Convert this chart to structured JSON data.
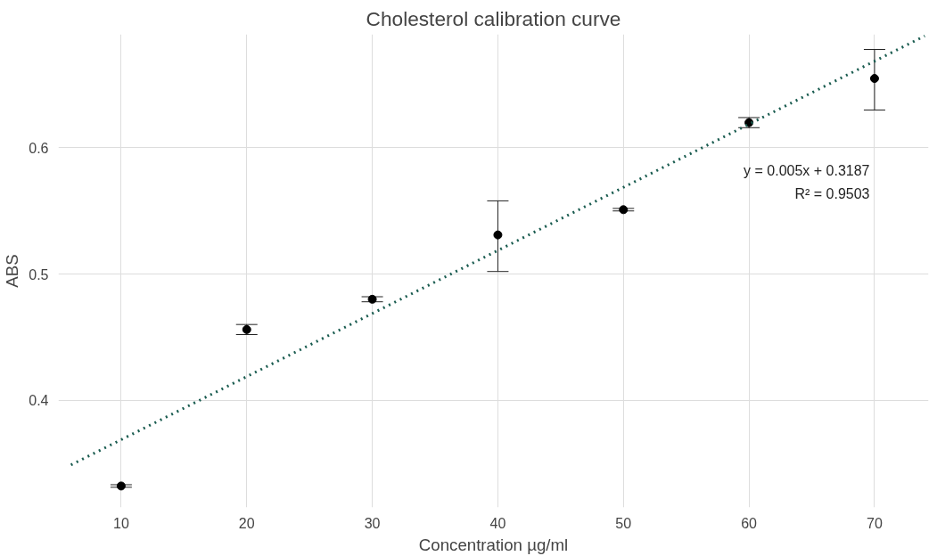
{
  "chart_data": {
    "type": "scatter",
    "title": "Cholesterol calibration curve",
    "xlabel": "Concentration µg/ml",
    "ylabel": "ABS",
    "xlim": [
      5,
      74.3
    ],
    "ylim": [
      0.315,
      0.69
    ],
    "xticks": [
      10,
      20,
      30,
      40,
      50,
      60,
      70
    ],
    "yticks": [
      0.4,
      0.5,
      0.6
    ],
    "grid": true,
    "series": [
      {
        "marker": "circle",
        "color": "#000000",
        "x": [
          10,
          20,
          30,
          40,
          50,
          60,
          70
        ],
        "values": [
          0.332,
          0.456,
          0.48,
          0.531,
          0.551,
          0.62,
          0.655
        ],
        "errors": [
          0.001,
          0.004,
          0.002,
          [
            0.502,
            0.558
          ],
          0.001,
          0.004,
          [
            0.63,
            0.678
          ]
        ]
      },
      {
        "type": "line",
        "color": "#1a5c50",
        "line_style": "dotted",
        "x": [
          6,
          74
        ],
        "values": [
          0.3487,
          0.6887
        ]
      }
    ],
    "annotations": [
      "y = 0.005x + 0.3187",
      "R² = 0.9503"
    ]
  }
}
